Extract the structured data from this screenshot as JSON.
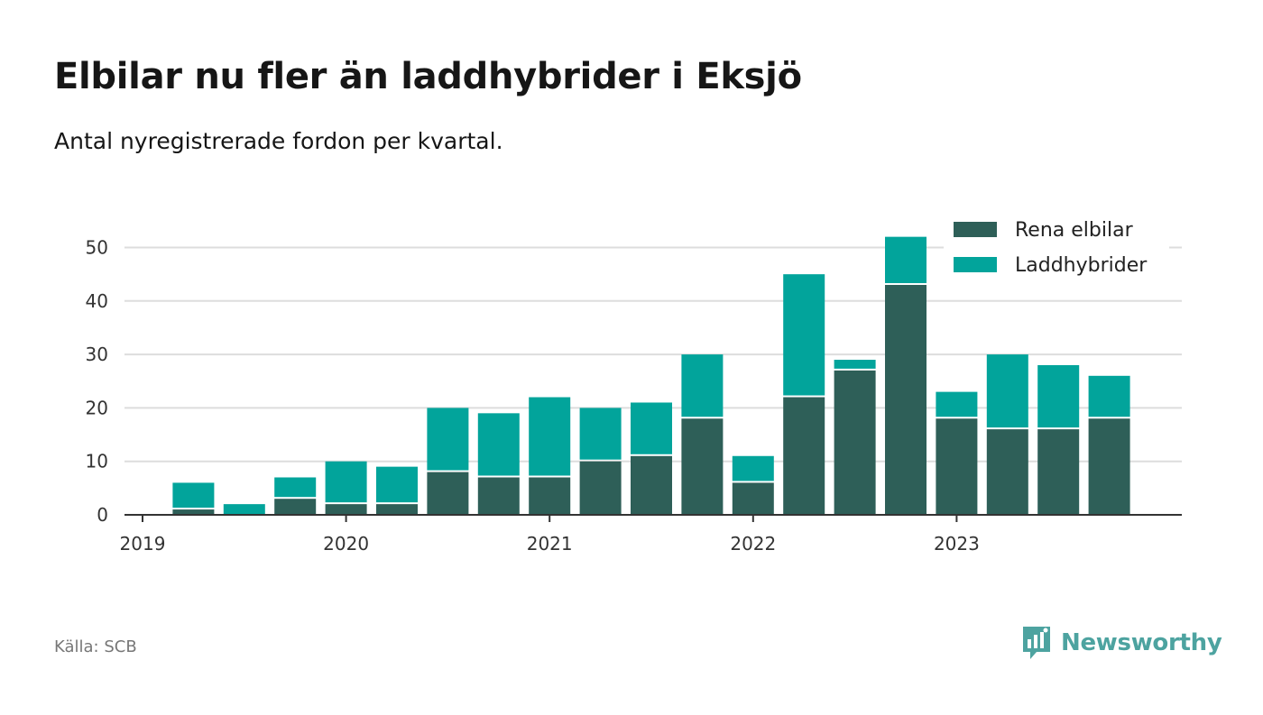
{
  "title": "Elbilar nu fler än laddhybrider i Eksjö",
  "subtitle": "Antal nyregistrerade fordon per kvartal.",
  "source": "Källa: SCB",
  "brand": "Newsworthy",
  "colors": {
    "elbilar": "#2e5f58",
    "laddhybrider": "#02a49b",
    "grid": "#dddddd",
    "axis": "#333333",
    "brand": "#4da3a0"
  },
  "chart_data": {
    "type": "bar",
    "stacked": true,
    "title": "Elbilar nu fler än laddhybrider i Eksjö",
    "subtitle": "Antal nyregistrerade fordon per kvartal.",
    "xlabel": "",
    "ylabel": "",
    "ylim": [
      0,
      52
    ],
    "yticks": [
      0,
      10,
      20,
      30,
      40,
      50
    ],
    "grid": true,
    "legend_position": "top-right",
    "categories": [
      "2019 Q2",
      "2019 Q3",
      "2019 Q4",
      "2020 Q1",
      "2020 Q2",
      "2020 Q3",
      "2020 Q4",
      "2021 Q1",
      "2021 Q2",
      "2021 Q3",
      "2021 Q4",
      "2022 Q1",
      "2022 Q2",
      "2022 Q3",
      "2022 Q4",
      "2023 Q1",
      "2023 Q2",
      "2023 Q3",
      "2023 Q4"
    ],
    "x_tick_labels": [
      "2019",
      "2020",
      "2021",
      "2022",
      "2023"
    ],
    "series": [
      {
        "name": "Rena elbilar",
        "values": [
          1,
          0,
          3,
          2,
          2,
          8,
          7,
          7,
          10,
          11,
          18,
          6,
          22,
          27,
          43,
          18,
          16,
          16,
          18
        ]
      },
      {
        "name": "Laddhybrider",
        "values": [
          5,
          2,
          4,
          8,
          7,
          12,
          12,
          15,
          10,
          10,
          12,
          5,
          23,
          2,
          9,
          5,
          14,
          12,
          8
        ]
      }
    ]
  }
}
